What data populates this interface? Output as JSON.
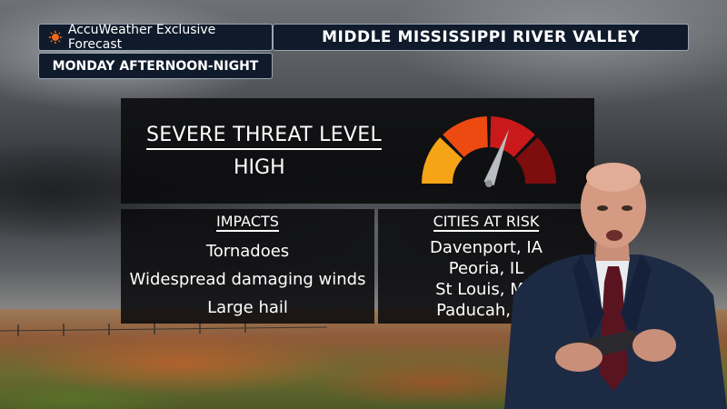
{
  "header": {
    "brand": "AccuWeather Exclusive Forecast",
    "region": "MIDDLE MISSISSIPPI RIVER VALLEY",
    "timeframe": "MONDAY AFTERNOON-NIGHT",
    "brand_icon": "sun-icon"
  },
  "threat": {
    "label": "SEVERE THREAT LEVEL",
    "value": "HIGH",
    "gauge_level": 3,
    "gauge_levels_total": 4,
    "gauge_colors": [
      "#f5a416",
      "#ec4a10",
      "#c9191a",
      "#7e0e0e"
    ]
  },
  "impacts": {
    "heading": "IMPACTS",
    "items": [
      "Tornadoes",
      "Widespread damaging winds",
      "Large hail"
    ]
  },
  "cities": {
    "heading": "CITIES AT RISK",
    "items": [
      "Davenport, IA",
      "Peoria, IL",
      "St Louis, MO",
      "Paducah, KY"
    ]
  },
  "colors": {
    "tag_background": "#0f1b2b",
    "panel_background": "#0a0a0c",
    "brand_accent": "#f26a1b"
  }
}
